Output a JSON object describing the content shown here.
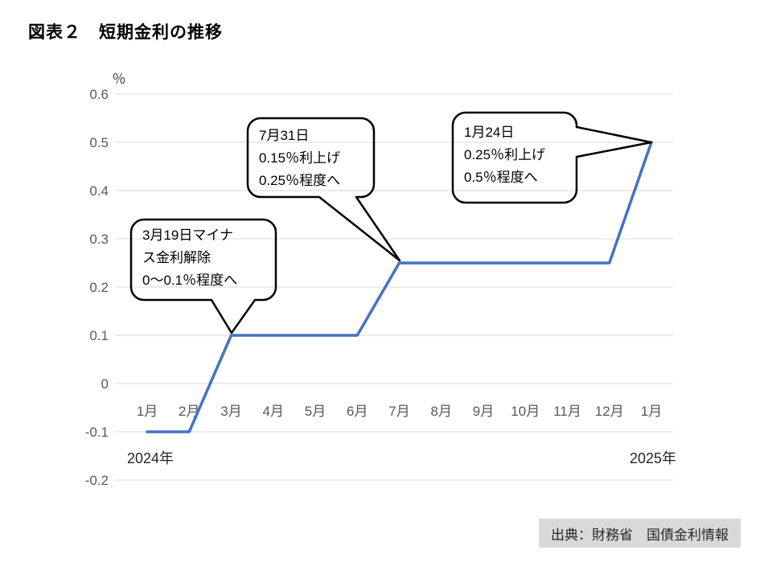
{
  "header": {
    "title": "図表２　短期金利の推移"
  },
  "chart_data": {
    "type": "line",
    "title": "短期金利の推移",
    "unit_label": "％",
    "xlabel": "",
    "ylabel": "％",
    "categories": [
      "1月",
      "2月",
      "3月",
      "4月",
      "5月",
      "6月",
      "7月",
      "8月",
      "9月",
      "10月",
      "11月",
      "12月",
      "1月"
    ],
    "values": [
      -0.1,
      -0.1,
      0.1,
      0.1,
      0.1,
      0.1,
      0.25,
      0.25,
      0.25,
      0.25,
      0.25,
      0.25,
      0.5
    ],
    "ylim": [
      -0.2,
      0.6
    ],
    "yticks": [
      {
        "label": "0.6",
        "value": 0.6
      },
      {
        "label": "0.5",
        "value": 0.5
      },
      {
        "label": "0.4",
        "value": 0.4
      },
      {
        "label": "0.3",
        "value": 0.3
      },
      {
        "label": "0.2",
        "value": 0.2
      },
      {
        "label": "0.1",
        "value": 0.1
      },
      {
        "label": "0",
        "value": 0
      },
      {
        "label": "-0.1",
        "value": -0.1
      },
      {
        "label": "-0.2",
        "value": -0.2
      }
    ],
    "grid": true,
    "legend": "none",
    "line_color": "#4472C4",
    "gridline_color": "#D9D9D9",
    "tick_color": "#595959",
    "year_labels": [
      {
        "text": "2024年"
      },
      {
        "text": "2025年"
      }
    ],
    "annotations": [
      {
        "lines": [
          "3月19日マイナ",
          "ス金利解除",
          "0〜0.1％程度へ"
        ],
        "target_index": 2,
        "target_month": "3月",
        "target_value": 0.1
      },
      {
        "lines": [
          "7月31日",
          "0.15％利上げ",
          "0.25％程度へ"
        ],
        "target_index": 6,
        "target_month": "7月",
        "target_value": 0.25
      },
      {
        "lines": [
          "1月24日",
          "0.25％利上げ",
          "0.5％程度へ"
        ],
        "target_index": 12,
        "target_month": "1月",
        "target_value": 0.5
      }
    ]
  },
  "source": {
    "text": "出典：財務省　国債金利情報",
    "background": "#D9D9D9"
  }
}
